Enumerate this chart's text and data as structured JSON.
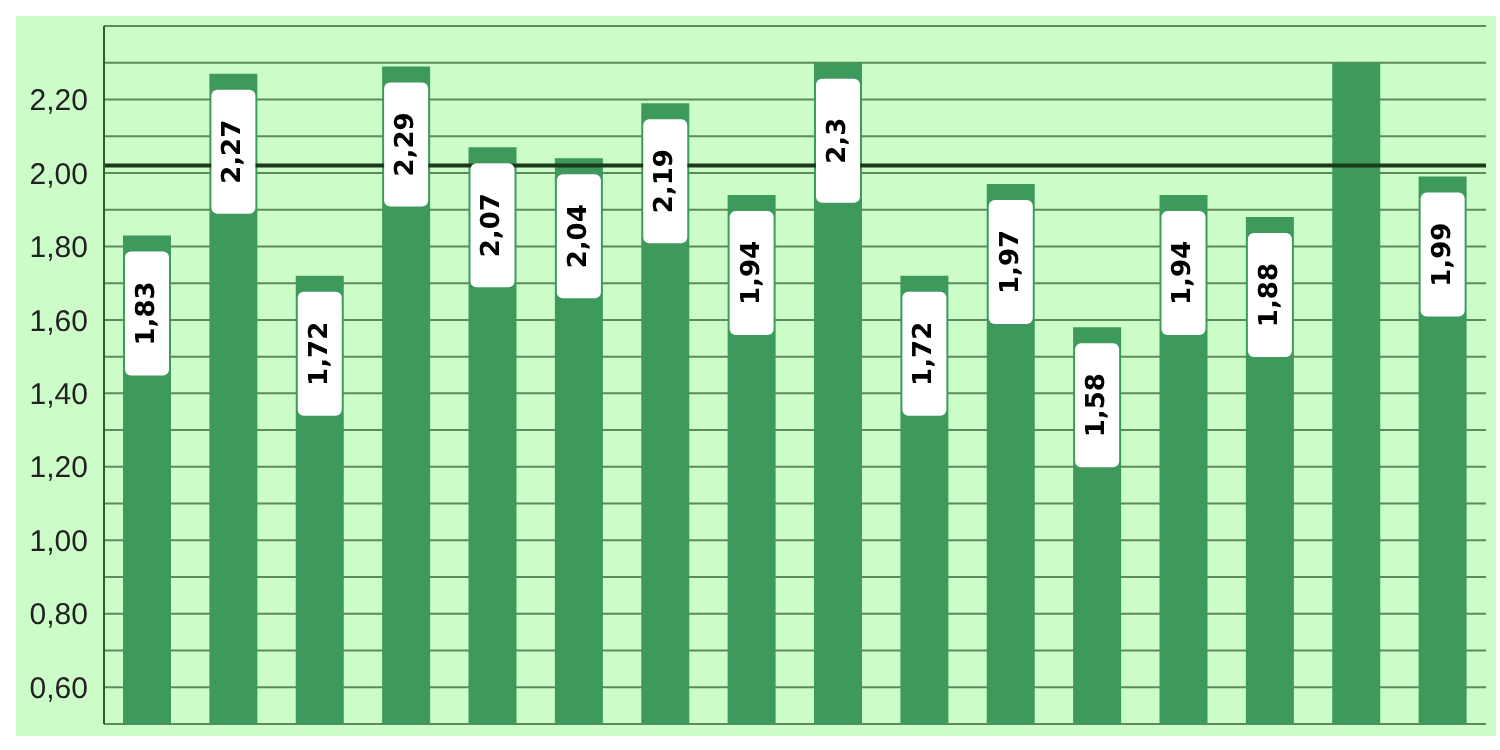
{
  "chart_data": {
    "type": "bar",
    "categories": [
      null,
      null,
      null,
      null,
      null,
      null,
      null,
      null,
      null,
      null,
      null,
      null,
      null,
      null,
      null,
      null
    ],
    "values": [
      1.83,
      2.27,
      1.72,
      2.29,
      2.07,
      2.04,
      2.19,
      1.94,
      2.3,
      1.72,
      1.97,
      1.58,
      1.94,
      1.88,
      2.3,
      1.99
    ],
    "value_labels": [
      "1,83",
      "2,27",
      "1,72",
      "2,29",
      "2,07",
      "2,04",
      "2,19",
      "1,94",
      "2,3",
      "1,72",
      "1,97",
      "1,58",
      "1,94",
      "1,88",
      null,
      "1,99"
    ],
    "color": "#3d9a5c",
    "ylim": [
      0.5,
      2.4
    ],
    "yticks": [
      {
        "value": 0.6,
        "label": "0,60"
      },
      {
        "value": 0.7,
        "label": null
      },
      {
        "value": 0.8,
        "label": "0,80"
      },
      {
        "value": 0.9,
        "label": null
      },
      {
        "value": 1.0,
        "label": "1,00"
      },
      {
        "value": 1.1,
        "label": null
      },
      {
        "value": 1.2,
        "label": "1,20"
      },
      {
        "value": 1.3,
        "label": null
      },
      {
        "value": 1.4,
        "label": "1,40"
      },
      {
        "value": 1.5,
        "label": null
      },
      {
        "value": 1.6,
        "label": "1,60"
      },
      {
        "value": 1.7,
        "label": null
      },
      {
        "value": 1.8,
        "label": "1,80"
      },
      {
        "value": 1.9,
        "label": null
      },
      {
        "value": 2.0,
        "label": "2,00"
      },
      {
        "value": 2.1,
        "label": null
      },
      {
        "value": 2.2,
        "label": "2,20"
      },
      {
        "value": 2.3,
        "label": null
      }
    ],
    "ref_lines": [
      {
        "axis": "y",
        "value": 2.02,
        "color": "#1a3a1a"
      }
    ],
    "grid": "y",
    "tick_labels": "y"
  }
}
